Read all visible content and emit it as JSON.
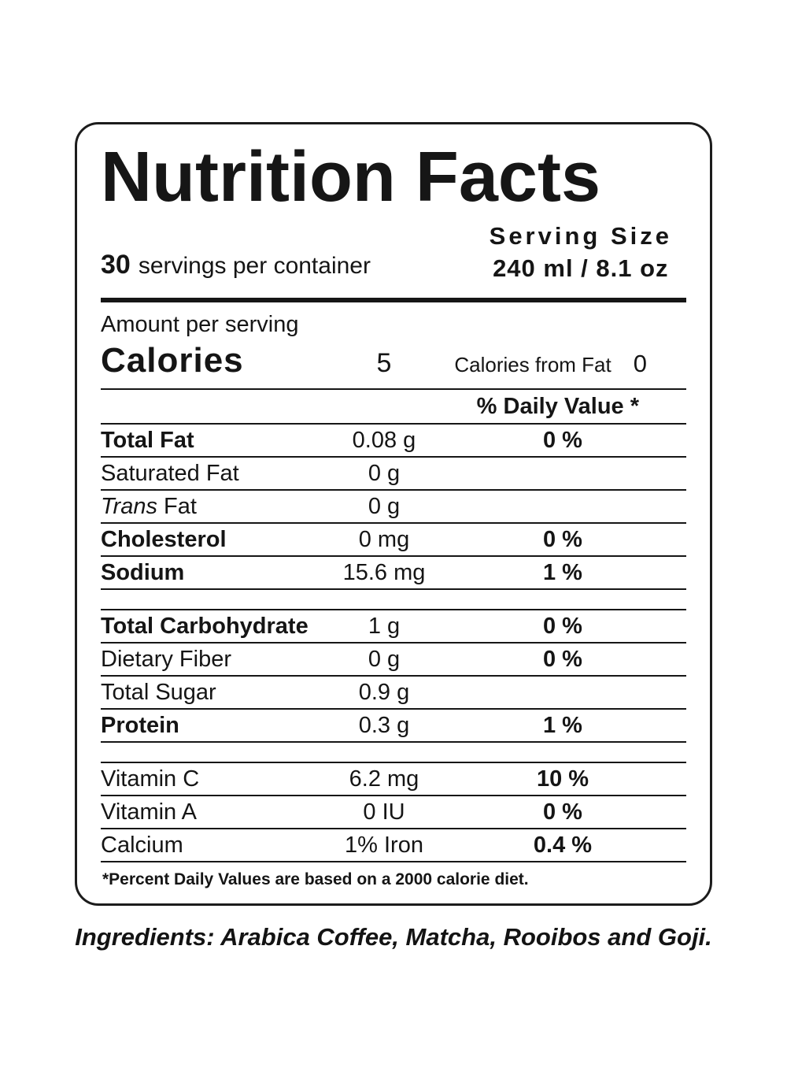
{
  "colors": {
    "text": "#161616",
    "background": "#ffffff"
  },
  "label": {
    "title": "Nutrition Facts",
    "servings_count": "30",
    "servings_text": "servings per container",
    "serving_size_label": "Serving Size",
    "serving_size_value": "240 ml / 8.1 oz",
    "amount_per_serving": "Amount per serving",
    "calories_label": "Calories",
    "calories_value": "5",
    "calories_from_fat_label": "Calories from Fat",
    "calories_from_fat_value": "0",
    "daily_value_header": "% Daily Value *",
    "rows": [
      {
        "name": "Total Fat",
        "amount": "0.08 g",
        "dv": "0 %"
      },
      {
        "name": "Saturated Fat",
        "amount": "0 g",
        "dv": ""
      },
      {
        "name_italic": "Trans",
        "name_rest": " Fat",
        "amount": "0 g",
        "dv": ""
      },
      {
        "name": "Cholesterol",
        "amount": "0 mg",
        "dv": "0 %"
      },
      {
        "name": "Sodium",
        "amount": "15.6 mg",
        "dv": "1 %"
      },
      {
        "name": "Total Carbohydrate",
        "amount": "1 g",
        "dv": "0 %"
      },
      {
        "name": "Dietary Fiber",
        "amount": "0 g",
        "dv": "0 %"
      },
      {
        "name": "Total Sugar",
        "amount": "0.9 g",
        "dv": ""
      },
      {
        "name": "Protein",
        "amount": "0.3 g",
        "dv": "1 %"
      },
      {
        "name": "Vitamin C",
        "amount": "6.2 mg",
        "dv": "10 %"
      },
      {
        "name": "Vitamin A",
        "amount": "0 IU",
        "dv": "0 %"
      },
      {
        "name": "Calcium",
        "amount": "1% Iron",
        "dv": "0.4 %"
      }
    ],
    "footnote": "*Percent Daily Values are based on a 2000 calorie diet.",
    "ingredients": "Ingredients: Arabica Coffee, Matcha, Rooibos and Goji."
  }
}
